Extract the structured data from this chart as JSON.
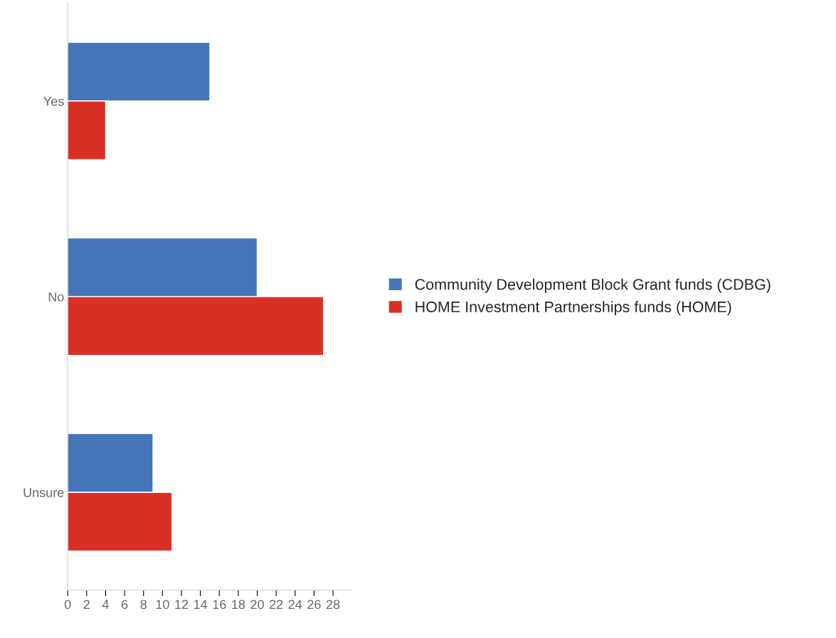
{
  "chart_data": {
    "type": "bar",
    "orientation": "horizontal",
    "categories": [
      "Yes",
      "No",
      "Unsure"
    ],
    "series": [
      {
        "name": "Community Development Block Grant funds (CDBG)",
        "color": "#4574b8",
        "values": [
          15,
          20,
          9
        ]
      },
      {
        "name": "HOME Investment Partnerships funds (HOME)",
        "color": "#d93026",
        "values": [
          4,
          27,
          11
        ]
      }
    ],
    "xlim": [
      0,
      30
    ],
    "xticks": [
      0,
      2,
      4,
      6,
      8,
      10,
      12,
      14,
      16,
      18,
      20,
      22,
      24,
      26,
      28
    ],
    "grid": false,
    "legend": "right"
  }
}
